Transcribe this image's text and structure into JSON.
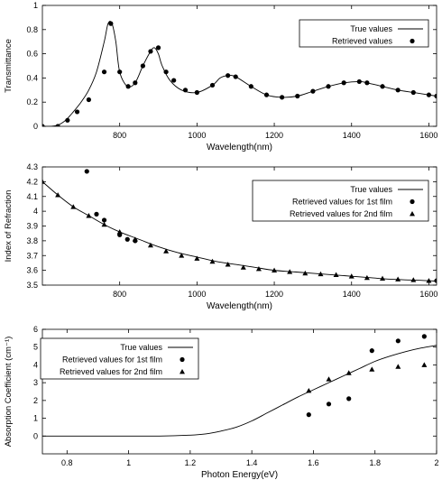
{
  "chart_data": [
    {
      "type": "line",
      "xlabel": "Wavelength(nm)",
      "ylabel": "Transmittance",
      "xlim": [
        600,
        1620
      ],
      "ylim": [
        0,
        1
      ],
      "xticks": [
        800,
        1000,
        1200,
        1400,
        1600
      ],
      "yticks": [
        0,
        0.2,
        0.4,
        0.6,
        0.8,
        1
      ],
      "ytick_labels": [
        "0",
        "0.2",
        "0.4",
        "0.6",
        "0.8",
        "1"
      ],
      "grid": false,
      "legend_position": "top-right",
      "series": [
        {
          "name": "True values",
          "style": "line",
          "x": [
            600,
            620,
            640,
            660,
            680,
            700,
            720,
            740,
            760,
            770,
            780,
            790,
            800,
            820,
            840,
            860,
            880,
            890,
            900,
            910,
            930,
            960,
            1000,
            1040,
            1060,
            1080,
            1100,
            1140,
            1180,
            1220,
            1260,
            1300,
            1340,
            1380,
            1420,
            1440,
            1480,
            1520,
            1560,
            1600,
            1620
          ],
          "y": [
            0.0,
            0.0,
            0.01,
            0.05,
            0.12,
            0.2,
            0.3,
            0.45,
            0.7,
            0.85,
            0.85,
            0.7,
            0.45,
            0.33,
            0.36,
            0.5,
            0.62,
            0.65,
            0.6,
            0.5,
            0.38,
            0.3,
            0.28,
            0.34,
            0.4,
            0.42,
            0.41,
            0.33,
            0.26,
            0.24,
            0.25,
            0.29,
            0.33,
            0.36,
            0.37,
            0.36,
            0.33,
            0.3,
            0.28,
            0.26,
            0.25
          ]
        },
        {
          "name": "Retrieved values",
          "style": "circle",
          "x": [
            600,
            640,
            665,
            690,
            720,
            760,
            777,
            800,
            822,
            840,
            860,
            880,
            900,
            920,
            940,
            970,
            1000,
            1040,
            1080,
            1100,
            1140,
            1180,
            1220,
            1260,
            1300,
            1340,
            1380,
            1420,
            1440,
            1480,
            1520,
            1560,
            1600,
            1620
          ],
          "y": [
            0.0,
            0.0,
            0.05,
            0.12,
            0.22,
            0.45,
            0.85,
            0.45,
            0.33,
            0.36,
            0.5,
            0.62,
            0.65,
            0.45,
            0.38,
            0.3,
            0.28,
            0.34,
            0.42,
            0.41,
            0.33,
            0.26,
            0.24,
            0.25,
            0.29,
            0.33,
            0.36,
            0.37,
            0.36,
            0.33,
            0.3,
            0.28,
            0.26,
            0.25
          ]
        }
      ]
    },
    {
      "type": "line",
      "xlabel": "Wavelength(nm)",
      "ylabel": "Index of Refraction",
      "xlim": [
        600,
        1620
      ],
      "ylim": [
        3.5,
        4.3
      ],
      "xticks": [
        800,
        1000,
        1200,
        1400,
        1600
      ],
      "yticks": [
        3.5,
        3.6,
        3.7,
        3.8,
        3.9,
        4.0,
        4.1,
        4.2,
        4.3
      ],
      "ytick_labels": [
        "3.5",
        "3.6",
        "3.7",
        "3.8",
        "3.9",
        "4",
        "4.1",
        "4.2",
        "4.3"
      ],
      "grid": false,
      "legend_position": "top-right",
      "series": [
        {
          "name": "True values",
          "style": "line",
          "x": [
            600,
            640,
            680,
            720,
            760,
            800,
            850,
            900,
            950,
            1000,
            1050,
            1100,
            1150,
            1200,
            1250,
            1300,
            1350,
            1400,
            1450,
            1500,
            1550,
            1600,
            1620
          ],
          "y": [
            4.2,
            4.11,
            4.03,
            3.97,
            3.91,
            3.86,
            3.81,
            3.76,
            3.72,
            3.69,
            3.66,
            3.64,
            3.62,
            3.6,
            3.59,
            3.58,
            3.57,
            3.56,
            3.55,
            3.54,
            3.535,
            3.53,
            3.525
          ]
        },
        {
          "name": "Retrieved values for 1st film",
          "style": "circle",
          "x": [
            715,
            740,
            760,
            800,
            820,
            840,
            1620
          ],
          "y": [
            4.27,
            3.98,
            3.94,
            3.84,
            3.81,
            3.8,
            3.53
          ]
        },
        {
          "name": "Retrieved values for 2nd film",
          "style": "triangle",
          "x": [
            600,
            640,
            680,
            720,
            760,
            800,
            840,
            880,
            920,
            960,
            1000,
            1040,
            1080,
            1120,
            1160,
            1200,
            1240,
            1280,
            1320,
            1360,
            1400,
            1440,
            1480,
            1520,
            1560,
            1600
          ],
          "y": [
            4.2,
            4.11,
            4.03,
            3.97,
            3.91,
            3.86,
            3.81,
            3.77,
            3.73,
            3.7,
            3.68,
            3.66,
            3.64,
            3.62,
            3.61,
            3.6,
            3.59,
            3.58,
            3.575,
            3.57,
            3.56,
            3.55,
            3.545,
            3.54,
            3.535,
            3.53
          ]
        }
      ]
    },
    {
      "type": "line",
      "xlabel": "Photon Energy(eV)",
      "ylabel": "Absorption Coefficient (cm⁻¹)",
      "xlim": [
        0.72,
        2.0
      ],
      "ylim": [
        -1,
        6
      ],
      "xticks": [
        0.8,
        1.0,
        1.2,
        1.4,
        1.6,
        1.8,
        2.0
      ],
      "xtick_labels": [
        "0.8",
        "1",
        "1.2",
        "1.4",
        "1.6",
        "1.8",
        "2"
      ],
      "yticks": [
        0,
        1,
        2,
        3,
        4,
        5,
        6
      ],
      "ytick_labels": [
        "0",
        "1",
        "2",
        "3",
        "4",
        "5",
        "6"
      ],
      "grid": false,
      "legend_position": "top-left",
      "series": [
        {
          "name": "True values",
          "style": "line",
          "x": [
            0.72,
            0.9,
            1.1,
            1.2,
            1.25,
            1.3,
            1.35,
            1.4,
            1.45,
            1.5,
            1.55,
            1.6,
            1.65,
            1.7,
            1.75,
            1.8,
            1.85,
            1.9,
            1.95,
            2.0
          ],
          "y": [
            0.0,
            0.0,
            0.0,
            0.05,
            0.12,
            0.28,
            0.5,
            0.85,
            1.3,
            1.75,
            2.2,
            2.6,
            3.0,
            3.4,
            3.8,
            4.2,
            4.5,
            4.75,
            4.95,
            5.1
          ]
        },
        {
          "name": "Retrieved values for 1st film",
          "style": "circle",
          "x": [
            1.585,
            1.65,
            1.715,
            1.79,
            1.875,
            1.96
          ],
          "y": [
            1.2,
            1.8,
            2.1,
            4.8,
            5.35,
            5.6
          ]
        },
        {
          "name": "Retrieved values for 2nd film",
          "style": "triangle",
          "x": [
            1.585,
            1.65,
            1.715,
            1.79,
            1.875,
            1.96
          ],
          "y": [
            2.55,
            3.2,
            3.55,
            3.75,
            3.9,
            4.0
          ]
        }
      ]
    }
  ]
}
